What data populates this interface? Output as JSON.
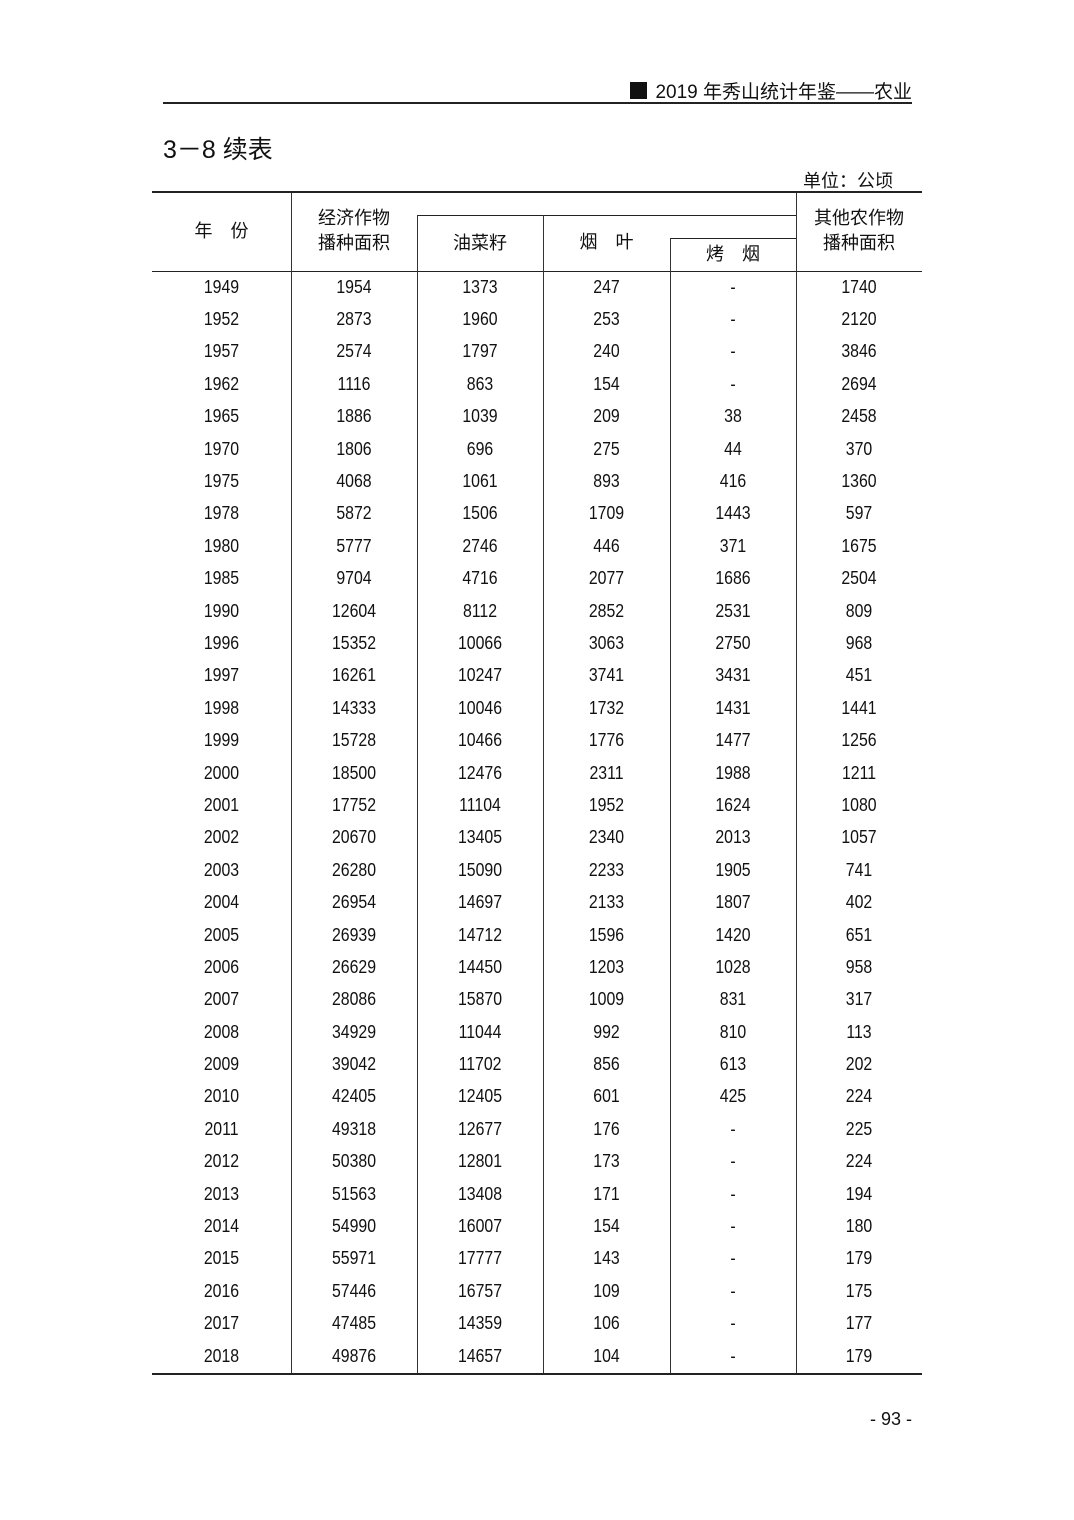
{
  "running_header": "2019 年秀山统计年鉴——农业",
  "table_title": "3－8 续表",
  "unit": "单位：公顷",
  "columns": {
    "year": "年　份",
    "cash_crops": [
      "经济作物",
      "播种面积"
    ],
    "rapeseed": "油菜籽",
    "tobacco": "烟　叶",
    "flue_cured": "烤　烟",
    "other_crops": [
      "其他农作物",
      "播种面积"
    ]
  },
  "rows": [
    [
      "1949",
      "1954",
      "1373",
      "247",
      "-",
      "1740"
    ],
    [
      "1952",
      "2873",
      "1960",
      "253",
      "-",
      "2120"
    ],
    [
      "1957",
      "2574",
      "1797",
      "240",
      "-",
      "3846"
    ],
    [
      "1962",
      "1116",
      "863",
      "154",
      "-",
      "2694"
    ],
    [
      "1965",
      "1886",
      "1039",
      "209",
      "38",
      "2458"
    ],
    [
      "1970",
      "1806",
      "696",
      "275",
      "44",
      "370"
    ],
    [
      "1975",
      "4068",
      "1061",
      "893",
      "416",
      "1360"
    ],
    [
      "1978",
      "5872",
      "1506",
      "1709",
      "1443",
      "597"
    ],
    [
      "1980",
      "5777",
      "2746",
      "446",
      "371",
      "1675"
    ],
    [
      "1985",
      "9704",
      "4716",
      "2077",
      "1686",
      "2504"
    ],
    [
      "1990",
      "12604",
      "8112",
      "2852",
      "2531",
      "809"
    ],
    [
      "1996",
      "15352",
      "10066",
      "3063",
      "2750",
      "968"
    ],
    [
      "1997",
      "16261",
      "10247",
      "3741",
      "3431",
      "451"
    ],
    [
      "1998",
      "14333",
      "10046",
      "1732",
      "1431",
      "1441"
    ],
    [
      "1999",
      "15728",
      "10466",
      "1776",
      "1477",
      "1256"
    ],
    [
      "2000",
      "18500",
      "12476",
      "2311",
      "1988",
      "1211"
    ],
    [
      "2001",
      "17752",
      "11104",
      "1952",
      "1624",
      "1080"
    ],
    [
      "2002",
      "20670",
      "13405",
      "2340",
      "2013",
      "1057"
    ],
    [
      "2003",
      "26280",
      "15090",
      "2233",
      "1905",
      "741"
    ],
    [
      "2004",
      "26954",
      "14697",
      "2133",
      "1807",
      "402"
    ],
    [
      "2005",
      "26939",
      "14712",
      "1596",
      "1420",
      "651"
    ],
    [
      "2006",
      "26629",
      "14450",
      "1203",
      "1028",
      "958"
    ],
    [
      "2007",
      "28086",
      "15870",
      "1009",
      "831",
      "317"
    ],
    [
      "2008",
      "34929",
      "11044",
      "992",
      "810",
      "113"
    ],
    [
      "2009",
      "39042",
      "11702",
      "856",
      "613",
      "202"
    ],
    [
      "2010",
      "42405",
      "12405",
      "601",
      "425",
      "224"
    ],
    [
      "2011",
      "49318",
      "12677",
      "176",
      "-",
      "225"
    ],
    [
      "2012",
      "50380",
      "12801",
      "173",
      "-",
      "224"
    ],
    [
      "2013",
      "51563",
      "13408",
      "171",
      "-",
      "194"
    ],
    [
      "2014",
      "54990",
      "16007",
      "154",
      "-",
      "180"
    ],
    [
      "2015",
      "55971",
      "17777",
      "143",
      "-",
      "179"
    ],
    [
      "2016",
      "57446",
      "16757",
      "109",
      "-",
      "175"
    ],
    [
      "2017",
      "47485",
      "14359",
      "106",
      "-",
      "177"
    ],
    [
      "2018",
      "49876",
      "14657",
      "104",
      "-",
      "179"
    ]
  ],
  "page_number": "- 93 -"
}
